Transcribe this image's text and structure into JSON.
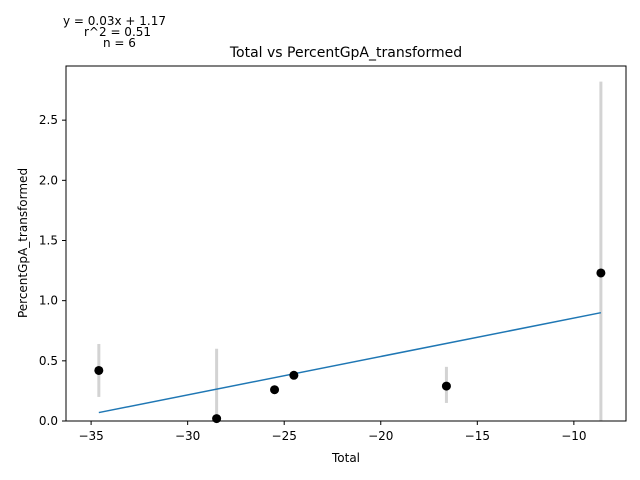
{
  "chart_data": {
    "type": "scatter",
    "title": "Total vs PercentGpA_transformed",
    "xlabel": "Total",
    "ylabel": "PercentGpA_transformed",
    "xlim": [
      -36.3,
      -7.3
    ],
    "ylim": [
      0,
      2.95
    ],
    "xticks": [
      -35,
      -30,
      -25,
      -20,
      -15,
      -10
    ],
    "xtick_labels": [
      "−35",
      "−30",
      "−25",
      "−20",
      "−15",
      "−10"
    ],
    "yticks": [
      0.0,
      0.5,
      1.0,
      1.5,
      2.0,
      2.5
    ],
    "ytick_labels": [
      "0.0",
      "0.5",
      "1.0",
      "1.5",
      "2.0",
      "2.5"
    ],
    "grid": false,
    "points": [
      {
        "x": -34.6,
        "y": 0.42,
        "err_low": 0.2,
        "err_high": 0.64
      },
      {
        "x": -28.5,
        "y": 0.02,
        "err_low": 0.0,
        "err_high": 0.6
      },
      {
        "x": -25.5,
        "y": 0.26
      },
      {
        "x": -24.5,
        "y": 0.38
      },
      {
        "x": -16.6,
        "y": 0.29,
        "err_low": 0.15,
        "err_high": 0.45
      },
      {
        "x": -8.6,
        "y": 1.23,
        "err_low": 0.0,
        "err_high": 2.82
      }
    ],
    "fit_line": {
      "x": [
        -34.6,
        -8.6
      ],
      "y": [
        0.07,
        0.9
      ]
    },
    "annotations": [
      "y = 0.03x + 1.17",
      "r^2 = 0.51",
      "n = 6"
    ],
    "colors": {
      "points": "#000000",
      "fit": "#1f77b4",
      "errorbars": "#d3d3d3"
    }
  }
}
